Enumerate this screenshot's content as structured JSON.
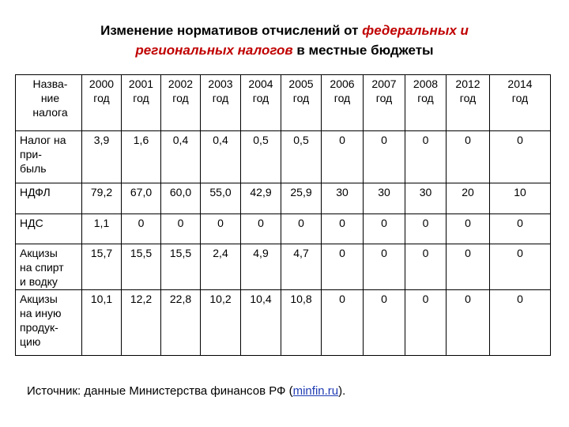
{
  "title": {
    "line1_prefix": "Изменение нормативов отчислений от ",
    "line1_red": "федеральных и",
    "line2_red": "региональных налогов",
    "line2_suffix": " в местные бюджеты"
  },
  "table": {
    "header_name": "Назва-\nние\nналога",
    "years": [
      "2000\nгод",
      "2001\nгод",
      "2002\nгод",
      "2003\nгод",
      "2004\nгод",
      "2005\nгод",
      "2006\nгод",
      "2007\nгод",
      "2008\nгод",
      "2012\nгод",
      "2014\nгод"
    ],
    "rows": [
      {
        "name": "Налог на\nпри-\nбыль",
        "values": [
          "3,9",
          "1,6",
          "0,4",
          "0,4",
          "0,5",
          "0,5",
          "0",
          "0",
          "0",
          "0",
          "0"
        ]
      },
      {
        "name": "НДФЛ",
        "values": [
          "79,2",
          "67,0",
          "60,0",
          "55,0",
          "42,9",
          "25,9",
          "30",
          "30",
          "30",
          "20",
          "10"
        ]
      },
      {
        "name": "НДС",
        "values": [
          "1,1",
          "0",
          "0",
          "0",
          "0",
          "0",
          "0",
          "0",
          "0",
          "0",
          "0"
        ]
      },
      {
        "name": "Акцизы\nна спирт\nи водку",
        "values": [
          "15,7",
          "15,5",
          "15,5",
          "2,4",
          "4,9",
          "4,7",
          "0",
          "0",
          "0",
          "0",
          "0"
        ]
      },
      {
        "name": "Акцизы\nна иную\nпродук-\nцию",
        "values": [
          "10,1",
          "12,2",
          "22,8",
          "10,2",
          "10,4",
          "10,8",
          "0",
          "0",
          "0",
          "0",
          "0"
        ]
      }
    ]
  },
  "source": {
    "prefix": "Источник: данные Министерства финансов РФ (",
    "link": "minfin.ru",
    "suffix": ")."
  }
}
